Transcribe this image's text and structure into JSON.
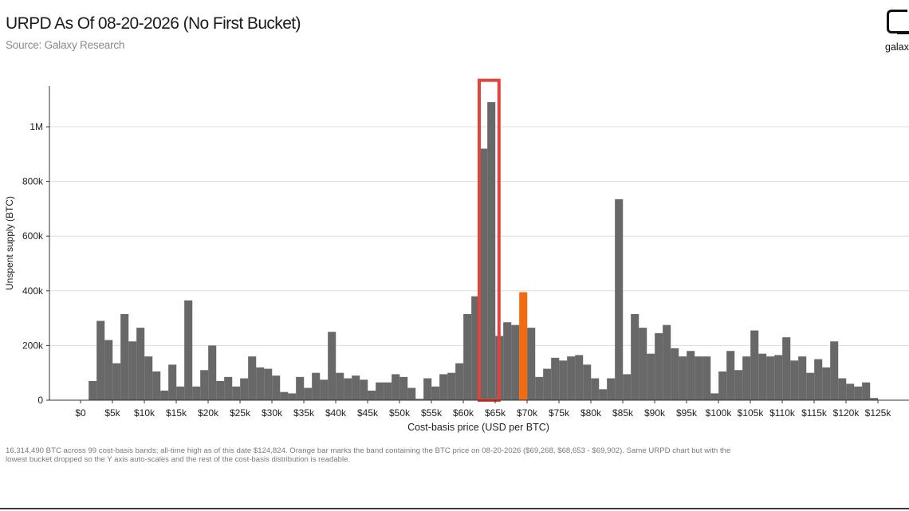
{
  "header": {
    "title": "URPD As Of 08-20-2026 (No First Bucket)",
    "subtitle": "Source: Galaxy Research",
    "logo_text": "galax"
  },
  "footnote": "16,314,490 BTC across 99 cost-basis bands; all-time high as of this date $124,824. Orange bar marks the band containing the BTC price on 08-20-2026 ($69,268, $68,653 - $69,902). Same URPD chart but with the lowest bucket dropped so the Y axis auto-scales and the rest of the cost-basis distribution is readable.",
  "colors": {
    "bar": "#686868",
    "highlight_bar": "#f36a10",
    "box": "#e0443c",
    "grid": "#dddddd",
    "axis": "#333333"
  },
  "chart_data": {
    "type": "bar",
    "xlabel": "Cost-basis price (USD per BTC)",
    "ylabel": "Unspent supply (BTC)",
    "ylim": [
      0,
      1150000
    ],
    "grid": true,
    "x_unit": "USD per BTC",
    "bucket_width": 1259,
    "x_ticks": [
      {
        "value": 0,
        "label": "$0"
      },
      {
        "value": 5000,
        "label": "$5k"
      },
      {
        "value": 10000,
        "label": "$10k"
      },
      {
        "value": 15000,
        "label": "$15k"
      },
      {
        "value": 20000,
        "label": "$20k"
      },
      {
        "value": 25000,
        "label": "$25k"
      },
      {
        "value": 30000,
        "label": "$30k"
      },
      {
        "value": 35000,
        "label": "$35k"
      },
      {
        "value": 40000,
        "label": "$40k"
      },
      {
        "value": 45000,
        "label": "$45k"
      },
      {
        "value": 50000,
        "label": "$50k"
      },
      {
        "value": 55000,
        "label": "$55k"
      },
      {
        "value": 60000,
        "label": "$60k"
      },
      {
        "value": 65000,
        "label": "$65k"
      },
      {
        "value": 70000,
        "label": "$70k"
      },
      {
        "value": 75000,
        "label": "$75k"
      },
      {
        "value": 80000,
        "label": "$80k"
      },
      {
        "value": 85000,
        "label": "$85k"
      },
      {
        "value": 90000,
        "label": "$90k"
      },
      {
        "value": 95000,
        "label": "$95k"
      },
      {
        "value": 100000,
        "label": "$100k"
      },
      {
        "value": 105000,
        "label": "$105k"
      },
      {
        "value": 110000,
        "label": "$110k"
      },
      {
        "value": 115000,
        "label": "$115k"
      },
      {
        "value": 120000,
        "label": "$120k"
      },
      {
        "value": 125000,
        "label": "$125k"
      }
    ],
    "y_ticks": [
      {
        "value": 0,
        "label": "0"
      },
      {
        "value": 200000,
        "label": "200k"
      },
      {
        "value": 400000,
        "label": "400k"
      },
      {
        "value": 600000,
        "label": "600k"
      },
      {
        "value": 800000,
        "label": "800k"
      },
      {
        "value": 1000000,
        "label": "1M"
      }
    ],
    "bars": [
      {
        "x": 1900,
        "value": 70000
      },
      {
        "x": 3150,
        "value": 290000
      },
      {
        "x": 4400,
        "value": 220000
      },
      {
        "x": 5650,
        "value": 135000
      },
      {
        "x": 6900,
        "value": 315000
      },
      {
        "x": 8150,
        "value": 215000
      },
      {
        "x": 9400,
        "value": 265000
      },
      {
        "x": 10650,
        "value": 160000
      },
      {
        "x": 11900,
        "value": 105000
      },
      {
        "x": 13150,
        "value": 35000
      },
      {
        "x": 14400,
        "value": 130000
      },
      {
        "x": 15650,
        "value": 50000
      },
      {
        "x": 16900,
        "value": 365000
      },
      {
        "x": 18150,
        "value": 50000
      },
      {
        "x": 19400,
        "value": 110000
      },
      {
        "x": 20650,
        "value": 200000
      },
      {
        "x": 21900,
        "value": 70000
      },
      {
        "x": 23150,
        "value": 85000
      },
      {
        "x": 24400,
        "value": 50000
      },
      {
        "x": 25650,
        "value": 80000
      },
      {
        "x": 26900,
        "value": 160000
      },
      {
        "x": 28150,
        "value": 120000
      },
      {
        "x": 29400,
        "value": 115000
      },
      {
        "x": 30650,
        "value": 90000
      },
      {
        "x": 31900,
        "value": 30000
      },
      {
        "x": 33150,
        "value": 25000
      },
      {
        "x": 34400,
        "value": 85000
      },
      {
        "x": 35650,
        "value": 45000
      },
      {
        "x": 36900,
        "value": 100000
      },
      {
        "x": 38150,
        "value": 75000
      },
      {
        "x": 39400,
        "value": 250000
      },
      {
        "x": 40650,
        "value": 100000
      },
      {
        "x": 41900,
        "value": 80000
      },
      {
        "x": 43150,
        "value": 90000
      },
      {
        "x": 44400,
        "value": 75000
      },
      {
        "x": 45650,
        "value": 35000
      },
      {
        "x": 46900,
        "value": 65000
      },
      {
        "x": 48150,
        "value": 65000
      },
      {
        "x": 49400,
        "value": 95000
      },
      {
        "x": 50650,
        "value": 85000
      },
      {
        "x": 51900,
        "value": 45000
      },
      {
        "x": 53150,
        "value": 5000
      },
      {
        "x": 54400,
        "value": 80000
      },
      {
        "x": 55650,
        "value": 50000
      },
      {
        "x": 56900,
        "value": 95000
      },
      {
        "x": 58150,
        "value": 100000
      },
      {
        "x": 59400,
        "value": 135000
      },
      {
        "x": 60650,
        "value": 315000
      },
      {
        "x": 61900,
        "value": 380000
      },
      {
        "x": 63150,
        "value": 920000
      },
      {
        "x": 64400,
        "value": 1090000
      },
      {
        "x": 65650,
        "value": 235000
      },
      {
        "x": 66900,
        "value": 285000
      },
      {
        "x": 68150,
        "value": 275000
      },
      {
        "x": 69400,
        "value": 395000,
        "highlight": true
      },
      {
        "x": 70650,
        "value": 265000
      },
      {
        "x": 71900,
        "value": 85000
      },
      {
        "x": 73150,
        "value": 115000
      },
      {
        "x": 74400,
        "value": 155000
      },
      {
        "x": 75650,
        "value": 145000
      },
      {
        "x": 76900,
        "value": 160000
      },
      {
        "x": 78150,
        "value": 165000
      },
      {
        "x": 79400,
        "value": 130000
      },
      {
        "x": 80650,
        "value": 80000
      },
      {
        "x": 81900,
        "value": 40000
      },
      {
        "x": 83150,
        "value": 80000
      },
      {
        "x": 84400,
        "value": 735000
      },
      {
        "x": 85650,
        "value": 95000
      },
      {
        "x": 86900,
        "value": 315000
      },
      {
        "x": 88150,
        "value": 265000
      },
      {
        "x": 89400,
        "value": 170000
      },
      {
        "x": 90650,
        "value": 245000
      },
      {
        "x": 91900,
        "value": 275000
      },
      {
        "x": 93150,
        "value": 190000
      },
      {
        "x": 94400,
        "value": 160000
      },
      {
        "x": 95650,
        "value": 180000
      },
      {
        "x": 96900,
        "value": 160000
      },
      {
        "x": 98150,
        "value": 160000
      },
      {
        "x": 99400,
        "value": 25000
      },
      {
        "x": 100650,
        "value": 105000
      },
      {
        "x": 101900,
        "value": 180000
      },
      {
        "x": 103150,
        "value": 110000
      },
      {
        "x": 104400,
        "value": 160000
      },
      {
        "x": 105650,
        "value": 255000
      },
      {
        "x": 106900,
        "value": 170000
      },
      {
        "x": 108150,
        "value": 160000
      },
      {
        "x": 109400,
        "value": 165000
      },
      {
        "x": 110650,
        "value": 230000
      },
      {
        "x": 111900,
        "value": 145000
      },
      {
        "x": 113150,
        "value": 160000
      },
      {
        "x": 114400,
        "value": 100000
      },
      {
        "x": 115650,
        "value": 150000
      },
      {
        "x": 116900,
        "value": 120000
      },
      {
        "x": 118150,
        "value": 215000
      },
      {
        "x": 119400,
        "value": 80000
      },
      {
        "x": 120650,
        "value": 60000
      },
      {
        "x": 121900,
        "value": 50000
      },
      {
        "x": 123150,
        "value": 65000
      },
      {
        "x": 124400,
        "value": 8000
      }
    ],
    "highlight_box": {
      "x_start": 62500,
      "x_end": 65600,
      "y_top": 1170000
    }
  }
}
